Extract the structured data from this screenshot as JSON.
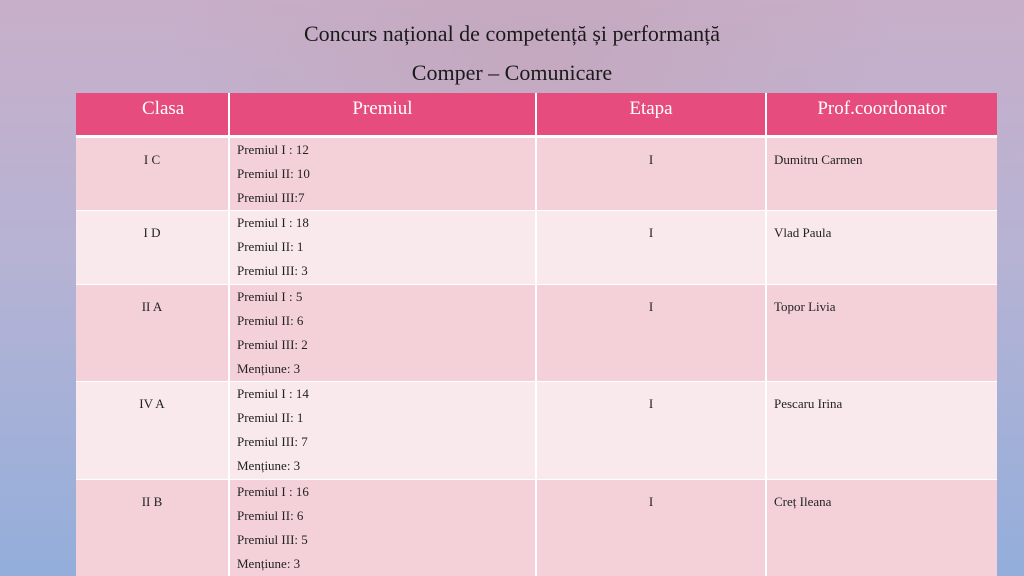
{
  "header": {
    "title": "Concurs național de competență și performanță",
    "subtitle": "Comper – Comunicare"
  },
  "table": {
    "columns": [
      "Clasa",
      "Premiul",
      "Etapa",
      "Prof.coordonator"
    ],
    "rows": [
      {
        "clasa": "I C",
        "premii": [
          "Premiul I : 12",
          "Premiul II: 10",
          "Premiul III:7"
        ],
        "etapa": "I",
        "prof": "Dumitru Carmen"
      },
      {
        "clasa": "I D",
        "premii": [
          "Premiul I : 18",
          "Premiul II: 1",
          "Premiul III: 3"
        ],
        "etapa": "I",
        "prof": "Vlad Paula"
      },
      {
        "clasa": "II A",
        "premii": [
          "Premiul I : 5",
          "Premiul II: 6",
          "Premiul III: 2",
          "Mențiune: 3"
        ],
        "etapa": "I",
        "prof": "Topor Livia"
      },
      {
        "clasa": "IV A",
        "premii": [
          "Premiul I : 14",
          "Premiul II: 1",
          "Premiul III: 7",
          "Mențiune: 3"
        ],
        "etapa": "I",
        "prof": "Pescaru Irina"
      },
      {
        "clasa": "II B",
        "premii": [
          "Premiul I : 16",
          "Premiul II: 6",
          "Premiul III: 5",
          "Mențiune: 3"
        ],
        "etapa": "I",
        "prof": "Creț Ileana"
      }
    ]
  }
}
